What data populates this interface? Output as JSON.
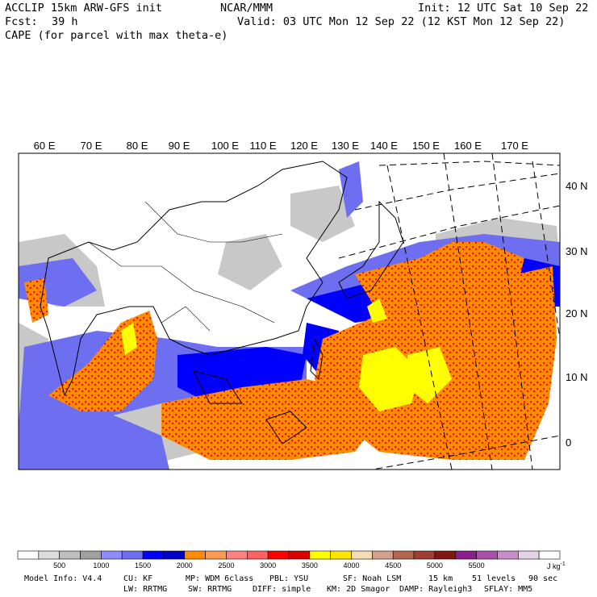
{
  "header": {
    "model": "ACCLIP 15km ARW-GFS init",
    "center": "NCAR/MMM",
    "init": "Init: 12 UTC Sat 10 Sep 22",
    "fcst_label": "Fcst:",
    "fcst_value": "39 h",
    "valid": "Valid: 03 UTC Mon 12 Sep 22 (12 KST Mon 12 Sep 22)",
    "field": "CAPE (for parcel with max theta-e)"
  },
  "map": {
    "lon_labels": [
      "60 E",
      "70 E",
      "80 E",
      "90 E",
      "100 E",
      "110 E",
      "120 E",
      "130 E",
      "140 E",
      "150 E",
      "160 E",
      "170 E"
    ],
    "lat_labels": [
      "40 N",
      "30 N",
      "20 N",
      "10 N",
      "0"
    ]
  },
  "colorbar": {
    "colors": [
      "#ffffff",
      "#dcdcdc",
      "#bebebe",
      "#a0a0a0",
      "#8c8cff",
      "#6e6ef0",
      "#0000ff",
      "#0000c8",
      "#ff8c00",
      "#ff9a50",
      "#ff8080",
      "#ff6060",
      "#ff0000",
      "#dc0000",
      "#ffff00",
      "#ffe600",
      "#f5dcb4",
      "#d2a08c",
      "#b46450",
      "#a03c32",
      "#821414",
      "#8c1e8c",
      "#aa50aa",
      "#c88cc8",
      "#e6d2e6",
      "#ffffff"
    ],
    "labels": [
      "500",
      "1000",
      "1500",
      "2000",
      "2500",
      "3000",
      "3500",
      "4000",
      "4500",
      "5000",
      "5500"
    ],
    "units": "J kg",
    "units_exp": "-1"
  },
  "footer": {
    "line1": [
      "Model Info: V4.4",
      "CU: KF",
      "MP: WDM 6class",
      "PBL: YSU",
      "SF: Noah LSM",
      "15 km",
      "51 levels",
      "90 sec"
    ],
    "line2": [
      "LW: RRTMG",
      "SW: RRTMG",
      "DIFF: simple",
      "KM: 2D Smagor",
      "DAMP: Rayleigh3",
      "SFLAY: MM5"
    ]
  }
}
